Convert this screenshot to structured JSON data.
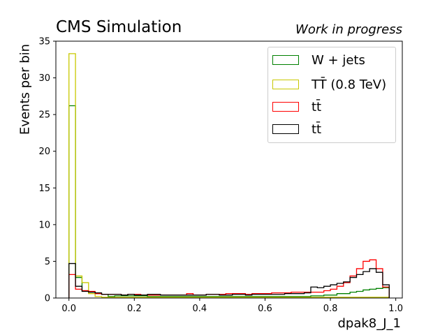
{
  "header": {
    "experiment_label": "CMS Simulation",
    "status_label": "Work in progress"
  },
  "chart_data": {
    "type": "histogram",
    "xlabel": "dpak8_J_1",
    "ylabel": "Events per bin",
    "xlim": [
      -0.04,
      1.02
    ],
    "ylim": [
      0,
      35
    ],
    "xticks": [
      "0.0",
      "0.2",
      "0.4",
      "0.6",
      "0.8",
      "1.0"
    ],
    "yticks": [
      "0",
      "5",
      "10",
      "15",
      "20",
      "25",
      "30",
      "35"
    ],
    "legend_position": "top-right",
    "bin_edges_start": 0.0,
    "bin_width": 0.02,
    "series": [
      {
        "name": "W + jets",
        "color": "#008000",
        "values": [
          26.2,
          2.8,
          1.0,
          0.8,
          0.6,
          0.5,
          0.2,
          0.3,
          0.3,
          0.3,
          0.3,
          0.3,
          0.2,
          0.2,
          0.2,
          0.2,
          0.2,
          0.2,
          0.2,
          0.2,
          0.2,
          0.2,
          0.2,
          0.2,
          0.2,
          0.2,
          0.2,
          0.2,
          0.2,
          0.2,
          0.2,
          0.2,
          0.2,
          0.2,
          0.2,
          0.2,
          0.2,
          0.3,
          0.3,
          0.4,
          0.4,
          0.6,
          0.6,
          0.8,
          0.9,
          1.1,
          1.2,
          1.3,
          1.4
        ]
      },
      {
        "name": "TT̄ (0.8 TeV)",
        "color": "#c8c800",
        "values": [
          33.3,
          3.0,
          2.1,
          0.6,
          0.2,
          0.1,
          0.1,
          0.1,
          0.1,
          0.1,
          0.1,
          0.1,
          0.1,
          0.1,
          0.1,
          0.1,
          0.1,
          0.1,
          0.1,
          0.1,
          0.1,
          0.1,
          0.1,
          0.1,
          0.1,
          0.1,
          0.1,
          0.1,
          0.1,
          0.1,
          0.1,
          0.1,
          0.1,
          0.1,
          0.1,
          0.1,
          0.1,
          0.1,
          0.1,
          0.1,
          0.1,
          0.1,
          0.1,
          0.1,
          0.1,
          0.1,
          0.1,
          0.1,
          0.1
        ]
      },
      {
        "name": "tt̄",
        "color": "#ff0000",
        "values": [
          3.2,
          1.2,
          1.0,
          0.9,
          0.6,
          0.5,
          0.5,
          0.5,
          0.4,
          0.5,
          0.5,
          0.4,
          0.4,
          0.4,
          0.4,
          0.4,
          0.4,
          0.4,
          0.6,
          0.4,
          0.4,
          0.5,
          0.5,
          0.5,
          0.6,
          0.6,
          0.6,
          0.5,
          0.6,
          0.6,
          0.6,
          0.7,
          0.7,
          0.7,
          0.8,
          0.8,
          0.8,
          0.8,
          0.8,
          1.0,
          1.2,
          1.6,
          2.1,
          3.0,
          4.0,
          5.0,
          5.2,
          4.0,
          1.5
        ]
      },
      {
        "name": "tt̄",
        "color": "#000000",
        "values": [
          4.7,
          1.6,
          0.9,
          0.8,
          0.7,
          0.5,
          0.5,
          0.5,
          0.4,
          0.5,
          0.4,
          0.4,
          0.5,
          0.5,
          0.4,
          0.4,
          0.4,
          0.4,
          0.4,
          0.4,
          0.4,
          0.5,
          0.5,
          0.4,
          0.4,
          0.5,
          0.5,
          0.4,
          0.5,
          0.5,
          0.5,
          0.5,
          0.5,
          0.6,
          0.6,
          0.6,
          0.7,
          1.5,
          1.4,
          1.6,
          1.8,
          2.0,
          2.2,
          2.8,
          3.2,
          3.6,
          4.0,
          3.5,
          1.8
        ]
      }
    ]
  }
}
